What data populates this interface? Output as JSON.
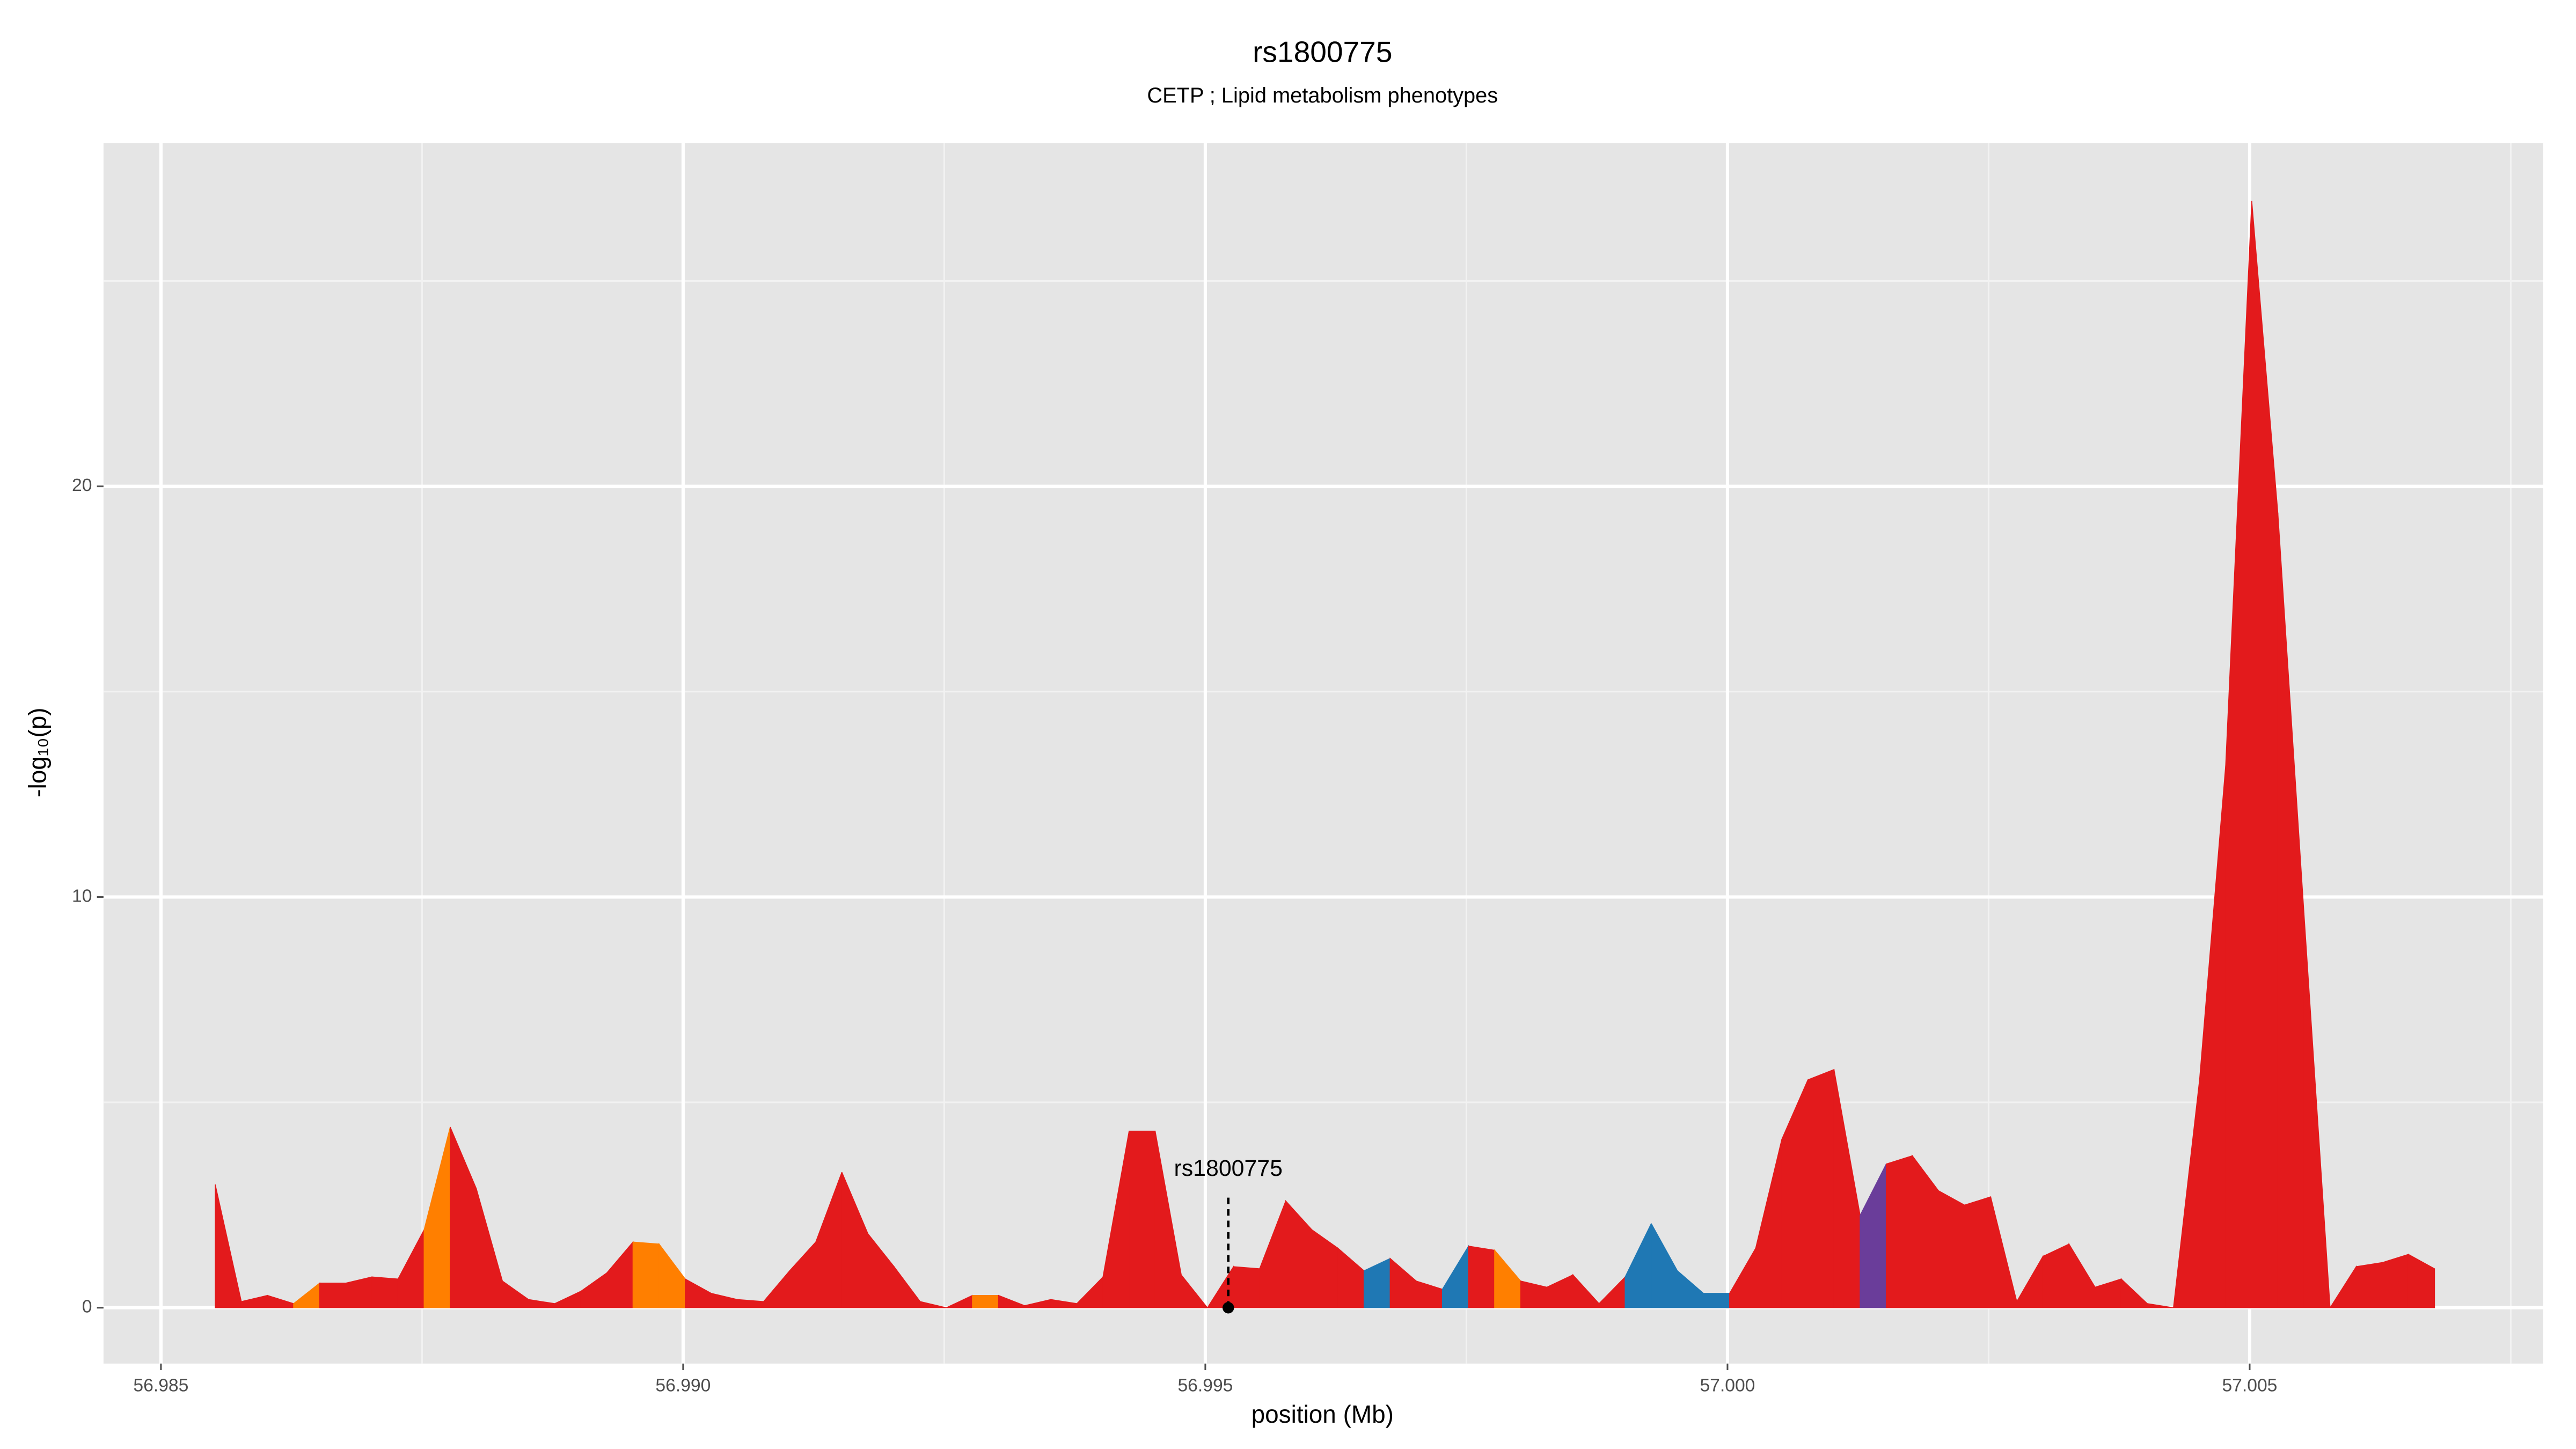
{
  "chart_data": {
    "type": "area",
    "title": "rs1800775",
    "subtitle": "CETP ; Lipid metabolism phenotypes",
    "x_label": "position (Mb)",
    "y_label": "-log₁₀(p)",
    "x": [
      56.98552,
      56.98577,
      56.98602,
      56.98627,
      56.98652,
      56.98677,
      56.98702,
      56.98727,
      56.98752,
      56.98777,
      56.98802,
      56.98827,
      56.98852,
      56.98877,
      56.98902,
      56.98927,
      56.98952,
      56.98977,
      56.99002,
      56.99027,
      56.99052,
      56.99077,
      56.99102,
      56.99127,
      56.99152,
      56.99177,
      56.99202,
      56.99227,
      56.99252,
      56.99277,
      56.99302,
      56.99327,
      56.99352,
      56.99377,
      56.99402,
      56.99427,
      56.99452,
      56.99477,
      56.99502,
      56.99527,
      56.99552,
      56.99577,
      56.99602,
      56.99627,
      56.99652,
      56.99677,
      56.99702,
      56.99727,
      56.99752,
      56.99777,
      56.99802,
      56.99827,
      56.99852,
      56.99877,
      56.99902,
      56.99927,
      56.99952,
      56.99977,
      57.00002,
      57.00027,
      57.00052,
      57.00077,
      57.00102,
      57.00127,
      57.00152,
      57.00177,
      57.00202,
      57.00227,
      57.00252,
      57.00277,
      57.00302,
      57.00327,
      57.00352,
      57.00377,
      57.00402,
      57.00427,
      57.00452,
      57.00477,
      57.00502,
      57.00527,
      57.00552,
      57.00577,
      57.00602,
      57.00627,
      57.00652,
      57.00677
    ],
    "values": [
      3.0,
      0.15,
      0.3,
      0.1,
      0.6,
      0.6,
      0.75,
      0.7,
      1.9,
      4.4,
      2.9,
      0.65,
      0.2,
      0.1,
      0.4,
      0.85,
      1.6,
      1.55,
      0.7,
      0.35,
      0.2,
      0.15,
      0.9,
      1.6,
      3.3,
      1.8,
      1.0,
      0.15,
      0,
      0.3,
      0.3,
      0.05,
      0.2,
      0.1,
      0.75,
      4.3,
      4.3,
      0.8,
      0,
      1.0,
      0.95,
      2.6,
      1.9,
      1.45,
      0.9,
      1.2,
      0.65,
      0.45,
      1.5,
      1.4,
      0.65,
      0.5,
      0.8,
      0.1,
      0.75,
      2.05,
      0.9,
      0.35,
      0.35,
      1.45,
      4.1,
      5.55,
      5.8,
      2.25,
      3.5,
      3.7,
      2.85,
      2.5,
      2.7,
      0.15,
      1.25,
      1.55,
      0.5,
      0.7,
      0.1,
      0,
      5.55,
      13.2,
      26.95,
      19.35,
      9.6,
      0,
      1.0,
      1.1,
      1.3,
      0.95
    ],
    "segment_colors": [
      "#e31a1c",
      "#e31a1c",
      "#e31a1c",
      "#ff7f00",
      "#e31a1c",
      "#e31a1c",
      "#e31a1c",
      "#e31a1c",
      "#ff7f00",
      "#e31a1c",
      "#e31a1c",
      "#e31a1c",
      "#e31a1c",
      "#e31a1c",
      "#e31a1c",
      "#e31a1c",
      "#ff7f00",
      "#ff7f00",
      "#e31a1c",
      "#e31a1c",
      "#e31a1c",
      "#e31a1c",
      "#e31a1c",
      "#e31a1c",
      "#e31a1c",
      "#e31a1c",
      "#e31a1c",
      "#e31a1c",
      "#e31a1c",
      "#ff7f00",
      "#e31a1c",
      "#e31a1c",
      "#e31a1c",
      "#e31a1c",
      "#e31a1c",
      "#e31a1c",
      "#e31a1c",
      "#e31a1c",
      "#e31a1c",
      "#e31a1c",
      "#e31a1c",
      "#e31a1c",
      "#e31a1c",
      "#e31a1c",
      "#1f78b4",
      "#e31a1c",
      "#e31a1c",
      "#1f78b4",
      "#e31a1c",
      "#ff7f00",
      "#e31a1c",
      "#e31a1c",
      "#e31a1c",
      "#e31a1c",
      "#1f78b4",
      "#1f78b4",
      "#1f78b4",
      "#1f78b4",
      "#e31a1c",
      "#e31a1c",
      "#e31a1c",
      "#e31a1c",
      "#e31a1c",
      "#6a3d9a",
      "#e31a1c",
      "#e31a1c",
      "#e31a1c",
      "#e31a1c",
      "#e31a1c",
      "#e31a1c",
      "#e31a1c",
      "#e31a1c",
      "#e31a1c",
      "#e31a1c",
      "#e31a1c",
      "#e31a1c",
      "#e31a1c",
      "#e31a1c",
      "#e31a1c",
      "#e31a1c",
      "#e31a1c",
      "#e31a1c",
      "#e31a1c",
      "#e31a1c",
      "#e31a1c"
    ],
    "annotation": {
      "label": "rs1800775",
      "x": 56.99522,
      "y": 0
    },
    "xlim": [
      56.98445,
      57.00781
    ],
    "ylim": [
      -1.36,
      28.36
    ],
    "xticks": [
      56.985,
      {
        "value": 56.99,
        "label": "56.990"
      },
      56.995,
      {
        "value": 57,
        "label": "57.000"
      },
      57.005
    ],
    "yticks": [
      0,
      10,
      20
    ],
    "minor_xticks": [
      56.9875,
      56.9925,
      56.9975,
      57.0025,
      57.0075
    ],
    "minor_yticks": [
      5,
      15,
      25
    ],
    "grid": true
  }
}
